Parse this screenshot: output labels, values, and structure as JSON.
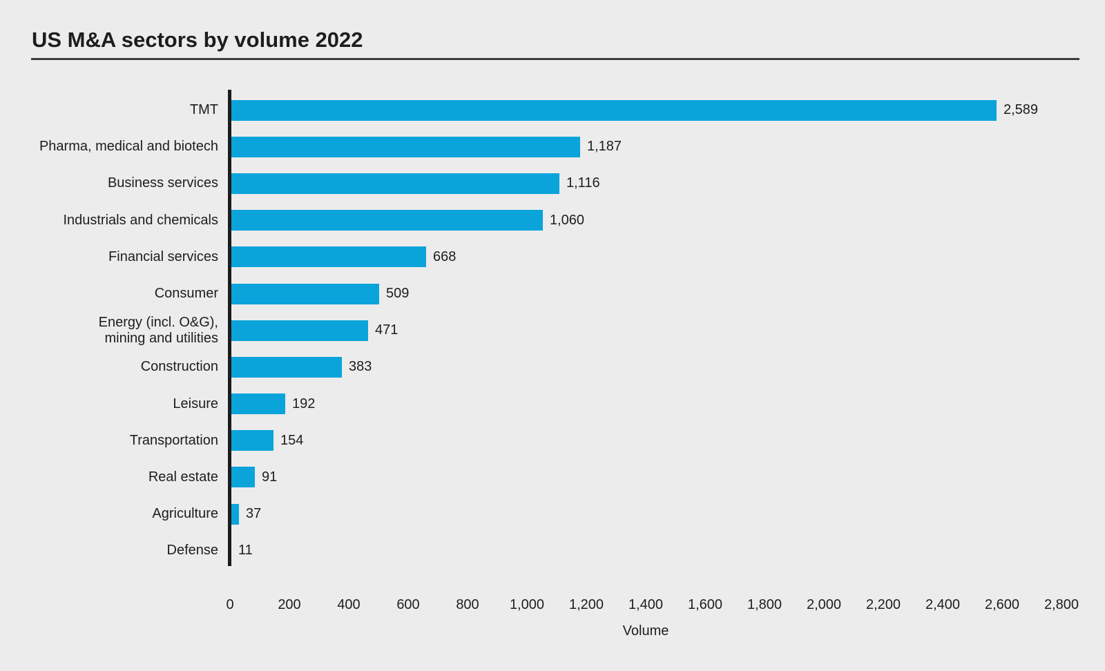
{
  "title": "US M&A sectors by volume 2022",
  "colors": {
    "background": "#ececec",
    "bar": "#0aa4db",
    "text": "#1d1d1b",
    "axis_line": "#1b1b1b",
    "title_rule": "#3c3c3c"
  },
  "chart_data": {
    "type": "bar",
    "orientation": "horizontal",
    "title": "US M&A sectors by volume 2022",
    "categories": [
      "TMT",
      "Pharma, medical and biotech",
      "Business services",
      "Industrials and chemicals",
      "Financial services",
      "Consumer",
      "Energy (incl. O&G),\nmining and utilities",
      "Construction",
      "Leisure",
      "Transportation",
      "Real estate",
      "Agriculture",
      "Defense"
    ],
    "values": [
      2589,
      1187,
      1116,
      1060,
      668,
      509,
      471,
      383,
      192,
      154,
      91,
      37,
      11
    ],
    "value_labels": [
      "2,589",
      "1,187",
      "1,116",
      "1,060",
      "668",
      "509",
      "471",
      "383",
      "192",
      "154",
      "91",
      "37",
      "11"
    ],
    "xlabel": "Volume",
    "ylabel": "",
    "xlim": [
      0,
      2800
    ],
    "xticks": [
      0,
      200,
      400,
      600,
      800,
      1000,
      1200,
      1400,
      1600,
      1800,
      2000,
      2200,
      2400,
      2600,
      2800
    ],
    "xtick_labels": [
      "0",
      "200",
      "400",
      "600",
      "800",
      "1,000",
      "1,200",
      "1,400",
      "1,600",
      "1,800",
      "2,000",
      "2,200",
      "2,400",
      "2,600",
      "2,800"
    ],
    "grid": false,
    "legend": null,
    "bar_value_labels_shown": true
  }
}
